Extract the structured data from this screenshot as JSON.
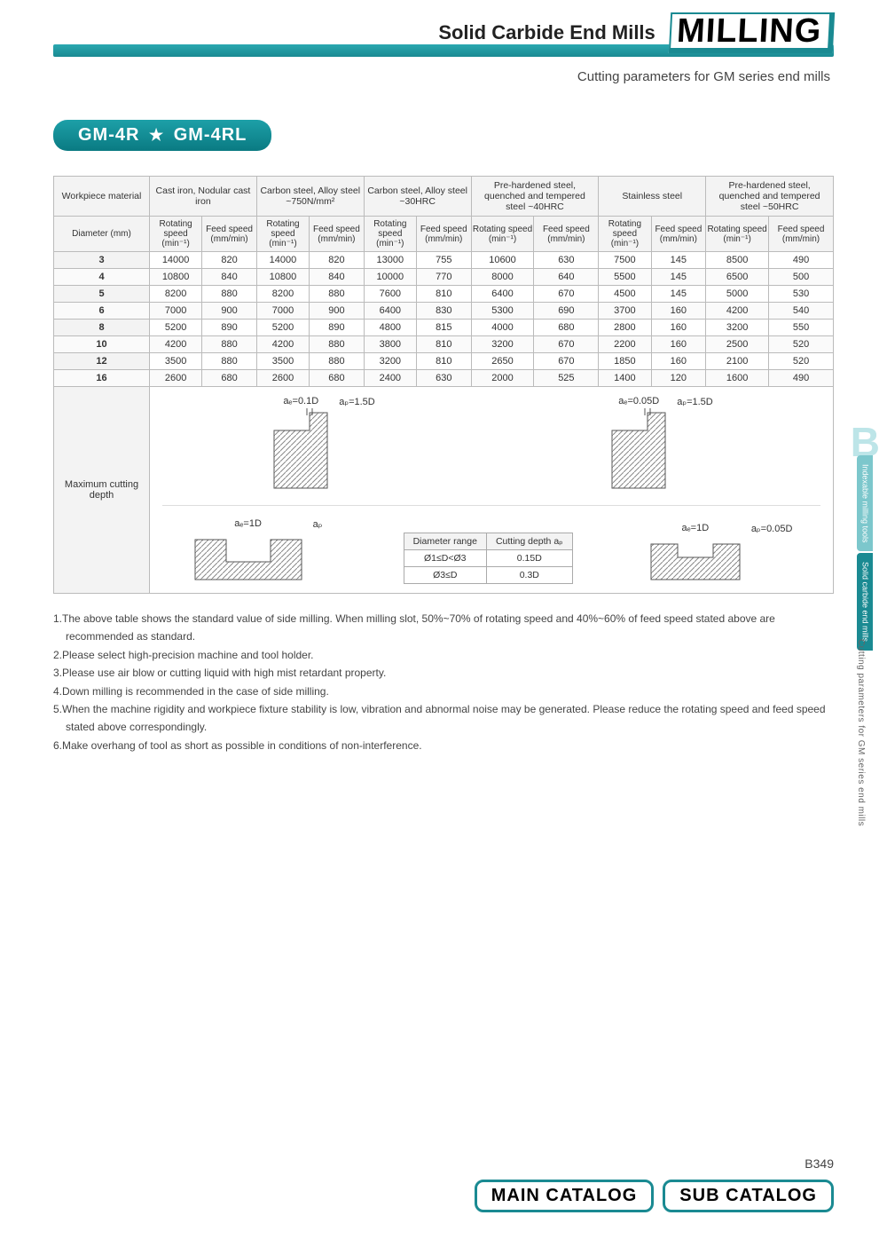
{
  "header": {
    "title": "Solid Carbide End Mills",
    "banner": "MILLING",
    "subtitle": "Cutting parameters for GM series end mills"
  },
  "model_pill": {
    "left": "GM-4R",
    "right": "GM-4RL"
  },
  "table": {
    "corner_label": "Workpiece material",
    "diameter_label": "Diameter (mm)",
    "materials": [
      "Cast iron, Nodular cast iron",
      "Carbon steel, Alloy steel ~750N/mm²",
      "Carbon steel, Alloy steel ~30HRC",
      "Pre-hardened steel, quenched and tempered steel ~40HRC",
      "Stainless steel",
      "Pre-hardened steel, quenched and tempered steel ~50HRC"
    ],
    "sub_rot": "Rotating speed (min⁻¹)",
    "sub_feed": "Feed speed (mm/min)",
    "rows": [
      {
        "d": "3",
        "v": [
          14000,
          820,
          14000,
          820,
          13000,
          755,
          10600,
          630,
          7500,
          145,
          8500,
          490
        ]
      },
      {
        "d": "4",
        "v": [
          10800,
          840,
          10800,
          840,
          10000,
          770,
          8000,
          640,
          5500,
          145,
          6500,
          500
        ]
      },
      {
        "d": "5",
        "v": [
          8200,
          880,
          8200,
          880,
          7600,
          810,
          6400,
          670,
          4500,
          145,
          5000,
          530
        ]
      },
      {
        "d": "6",
        "v": [
          7000,
          900,
          7000,
          900,
          6400,
          830,
          5300,
          690,
          3700,
          160,
          4200,
          540
        ]
      },
      {
        "d": "8",
        "v": [
          5200,
          890,
          5200,
          890,
          4800,
          815,
          4000,
          680,
          2800,
          160,
          3200,
          550
        ]
      },
      {
        "d": "10",
        "v": [
          4200,
          880,
          4200,
          880,
          3800,
          810,
          3200,
          670,
          2200,
          160,
          2500,
          520
        ]
      },
      {
        "d": "12",
        "v": [
          3500,
          880,
          3500,
          880,
          3200,
          810,
          2650,
          670,
          1850,
          160,
          2100,
          520
        ]
      },
      {
        "d": "16",
        "v": [
          2600,
          680,
          2600,
          680,
          2400,
          630,
          2000,
          525,
          1400,
          120,
          1600,
          490
        ]
      }
    ]
  },
  "depth": {
    "label": "Maximum cutting depth",
    "dg1_ae": "aₑ=0.1D",
    "dg1_ap": "aₚ=1.5D",
    "dg2_ae": "aₑ=0.05D",
    "dg2_ap": "aₚ=1.5D",
    "dg3_ae": "aₑ=1D",
    "dg3_ap": "aₚ",
    "dg4_ae": "aₑ=1D",
    "dg4_ap": "aₚ=0.05D",
    "mini_header1": "Diameter range",
    "mini_header2": "Cutting depth aₚ",
    "mini_rows": [
      {
        "r": "Ø1≤D<Ø3",
        "c": "0.15D"
      },
      {
        "r": "Ø3≤D",
        "c": "0.3D"
      }
    ]
  },
  "notes": [
    "1.The above table shows the standard value of side milling. When milling slot, 50%~70% of rotating speed and 40%~60% of feed speed stated above are recommended as standard.",
    "2.Please select high-precision machine and tool holder.",
    "3.Please use air blow or cutting liquid with high mist retardant property.",
    "4.Down milling is recommended in the case of side milling.",
    "5.When the machine rigidity and workpiece fixture stability is low, vibration and abnormal noise may be generated. Please reduce the rotating speed and feed speed stated above correspondingly.",
    "6.Make overhang of tool as short as possible in conditions of non-interference."
  ],
  "side": {
    "big_b": "B",
    "tab1": "Indexable milling tools",
    "tab2": "Solid carbide end mills",
    "caption": "Cutting parameters for GM series end mills"
  },
  "footer": {
    "page_prefix": "B",
    "page_num": "349",
    "btn_main": "MAIN CATALOG",
    "btn_sub": "SUB CATALOG"
  },
  "colors": {
    "teal": "#1a8a92",
    "teal_light": "#2aa8b0",
    "tab_light": "#7cc7cc",
    "border": "#bbbbbb"
  }
}
